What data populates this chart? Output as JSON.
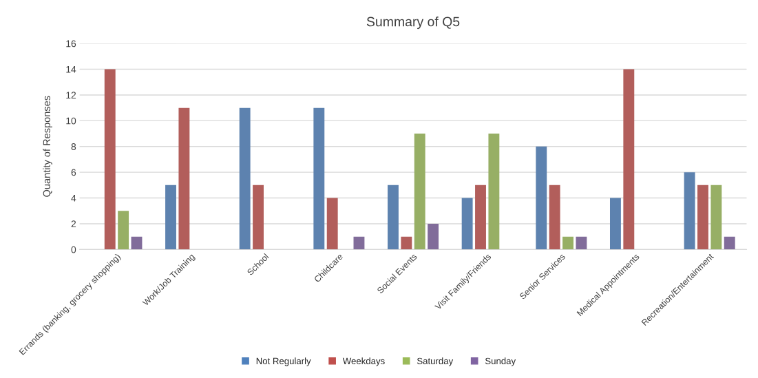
{
  "chart_data": {
    "type": "bar",
    "title": "Summary of Q5",
    "ylabel": "Quantity of Responses",
    "categories": [
      "Errands (banking, grocery shopping)",
      "Work/Job Training",
      "School",
      "Childcare",
      "Social Events",
      "Visit Family/Friends",
      "Senior Services",
      "Medical Appointments",
      "Recreation/Entertainment"
    ],
    "series": [
      {
        "name": "Not Regularly",
        "color": "#4f81bd",
        "values": [
          0,
          5,
          11,
          11,
          5,
          4,
          8,
          4,
          6
        ]
      },
      {
        "name": "Weekdays",
        "color": "#c0504d",
        "values": [
          14,
          11,
          5,
          4,
          1,
          5,
          5,
          14,
          5
        ]
      },
      {
        "name": "Saturday",
        "color": "#9bbb59",
        "values": [
          3,
          0,
          0,
          0,
          9,
          9,
          1,
          0,
          5
        ]
      },
      {
        "name": "Sunday",
        "color": "#8064a2",
        "values": [
          1,
          0,
          0,
          1,
          2,
          0,
          1,
          0,
          1
        ]
      }
    ],
    "ylim": [
      0,
      16
    ],
    "yticks": [
      0,
      2,
      4,
      6,
      8,
      10,
      12,
      14,
      16
    ],
    "grid": "y",
    "legend": "bottom"
  }
}
